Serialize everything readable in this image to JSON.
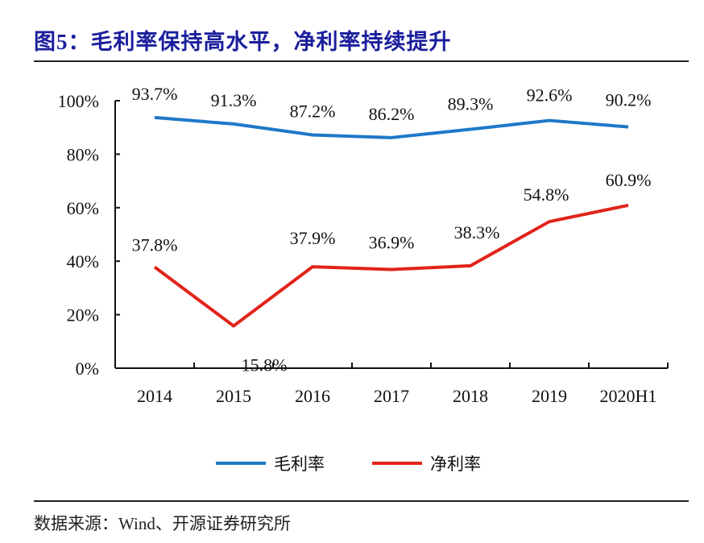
{
  "title": "图5：毛利率保持高水平，净利率持续提升",
  "source": "数据来源：Wind、开源证券研究所",
  "chart_data": {
    "type": "line",
    "title": "图5：毛利率保持高水平，净利率持续提升",
    "categories": [
      "2014",
      "2015",
      "2016",
      "2017",
      "2018",
      "2019",
      "2020H1"
    ],
    "ylim": [
      0,
      100
    ],
    "yticks": [
      "0%",
      "20%",
      "40%",
      "60%",
      "80%",
      "100%"
    ],
    "ytick_values": [
      0,
      20,
      40,
      60,
      80,
      100
    ],
    "grid": false,
    "legend_position": "bottom",
    "series": [
      {
        "name": "毛利率",
        "color": "#1f78c8",
        "values": [
          93.7,
          91.3,
          87.2,
          86.2,
          89.3,
          92.6,
          90.2
        ],
        "labels": [
          "93.7%",
          "91.3%",
          "87.2%",
          "86.2%",
          "89.3%",
          "92.6%",
          "90.2%"
        ]
      },
      {
        "name": "净利率",
        "color": "#e2231a",
        "values": [
          37.8,
          15.8,
          37.9,
          36.9,
          38.3,
          54.8,
          60.9
        ],
        "labels": [
          "37.8%",
          "15.8%",
          "37.9%",
          "36.9%",
          "38.3%",
          "54.8%",
          "60.9%"
        ]
      }
    ]
  }
}
